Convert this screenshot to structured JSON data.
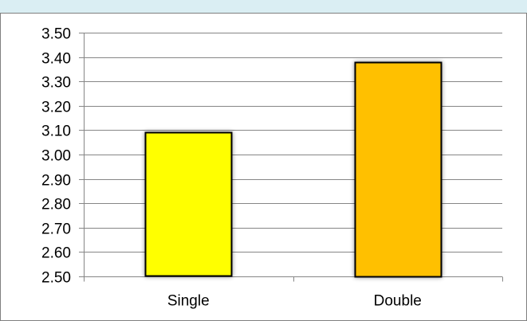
{
  "chart_data": {
    "type": "bar",
    "categories": [
      "Single",
      "Double"
    ],
    "values": [
      3.09,
      3.38
    ],
    "ylim": [
      2.5,
      3.5
    ],
    "yticks": [
      "2.50",
      "2.60",
      "2.70",
      "2.80",
      "2.90",
      "3.00",
      "3.10",
      "3.20",
      "3.30",
      "3.40",
      "3.50"
    ],
    "xlabel": "",
    "ylabel": "",
    "grid": true,
    "legend": "none",
    "bar_colors": [
      "#ffff00",
      "#ffc000"
    ],
    "bar_border_color": "#000000",
    "gridline_color": "#868686",
    "top_strip_color": "#daeef3"
  }
}
